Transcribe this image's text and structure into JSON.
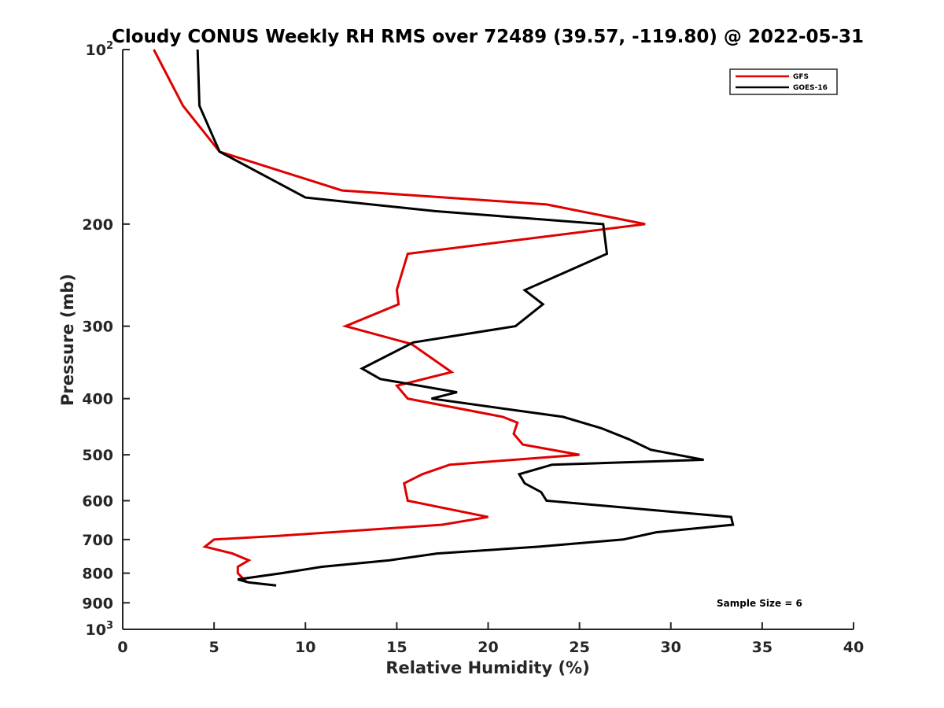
{
  "chart_data": {
    "type": "line",
    "title": "Cloudy CONUS Weekly RH RMS over 72489 (39.57, -119.80) @ 2022-05-31",
    "xlabel": "Relative Humidity (%)",
    "ylabel": "Pressure (mb)",
    "xlim": [
      0,
      40
    ],
    "ylim": [
      100,
      1000
    ],
    "y_scale": "log",
    "y_reversed": true,
    "x_ticks": [
      0,
      5,
      10,
      15,
      20,
      25,
      30,
      35,
      40
    ],
    "x_tick_labels": [
      "0",
      "5",
      "10",
      "15",
      "20",
      "25",
      "30",
      "35",
      "40"
    ],
    "y_ticks": [
      100,
      200,
      300,
      400,
      500,
      600,
      700,
      800,
      900,
      1000
    ],
    "y_tick_labels": [
      {
        "base": "10",
        "exp": "2"
      },
      {
        "base": "200",
        "exp": ""
      },
      {
        "base": "300",
        "exp": ""
      },
      {
        "base": "400",
        "exp": ""
      },
      {
        "base": "500",
        "exp": ""
      },
      {
        "base": "600",
        "exp": ""
      },
      {
        "base": "700",
        "exp": ""
      },
      {
        "base": "800",
        "exp": ""
      },
      {
        "base": "900",
        "exp": ""
      },
      {
        "base": "10",
        "exp": "3"
      }
    ],
    "grid": false,
    "legend_position": "top-right",
    "series": [
      {
        "name": "GFS",
        "color": "#e00000",
        "x": [
          1.7,
          3.3,
          5.3,
          12.0,
          23.2,
          28.6,
          15.6,
          15.0,
          15.1,
          12.2,
          15.8,
          18.0,
          15.0,
          15.6,
          20.8,
          21.6,
          21.4,
          21.9,
          25.0,
          17.9,
          16.4,
          15.4,
          15.6,
          20.0,
          17.5,
          8.5,
          5.0,
          4.5,
          6.0,
          6.9,
          6.3,
          6.3,
          6.8
        ],
        "y": [
          100,
          125,
          150,
          175,
          185,
          200,
          225,
          260,
          275,
          300,
          322,
          360,
          380,
          400,
          430,
          440,
          460,
          480,
          500,
          520,
          540,
          560,
          600,
          640,
          660,
          690,
          700,
          720,
          740,
          760,
          780,
          800,
          830
        ]
      },
      {
        "name": "GOES-16",
        "color": "#000000",
        "x": [
          4.1,
          4.2,
          5.3,
          10.0,
          17.1,
          26.3,
          26.5,
          24.5,
          22.0,
          23.0,
          21.5,
          15.9,
          13.1,
          14.1,
          18.3,
          16.9,
          24.1,
          26.2,
          27.7,
          28.9,
          31.8,
          23.5,
          21.7,
          22.0,
          22.9,
          23.2,
          33.3,
          33.4,
          29.2,
          27.4,
          22.8,
          17.2,
          14.6,
          10.9,
          8.7,
          6.3,
          6.9,
          8.4
        ],
        "y": [
          100,
          125,
          150,
          180,
          190,
          200,
          225,
          240,
          260,
          275,
          300,
          320,
          355,
          370,
          390,
          400,
          430,
          450,
          470,
          490,
          510,
          520,
          540,
          560,
          580,
          600,
          640,
          660,
          680,
          700,
          720,
          740,
          760,
          780,
          800,
          820,
          830,
          840
        ]
      }
    ],
    "annotations": [
      "Sample Size = 6"
    ]
  }
}
